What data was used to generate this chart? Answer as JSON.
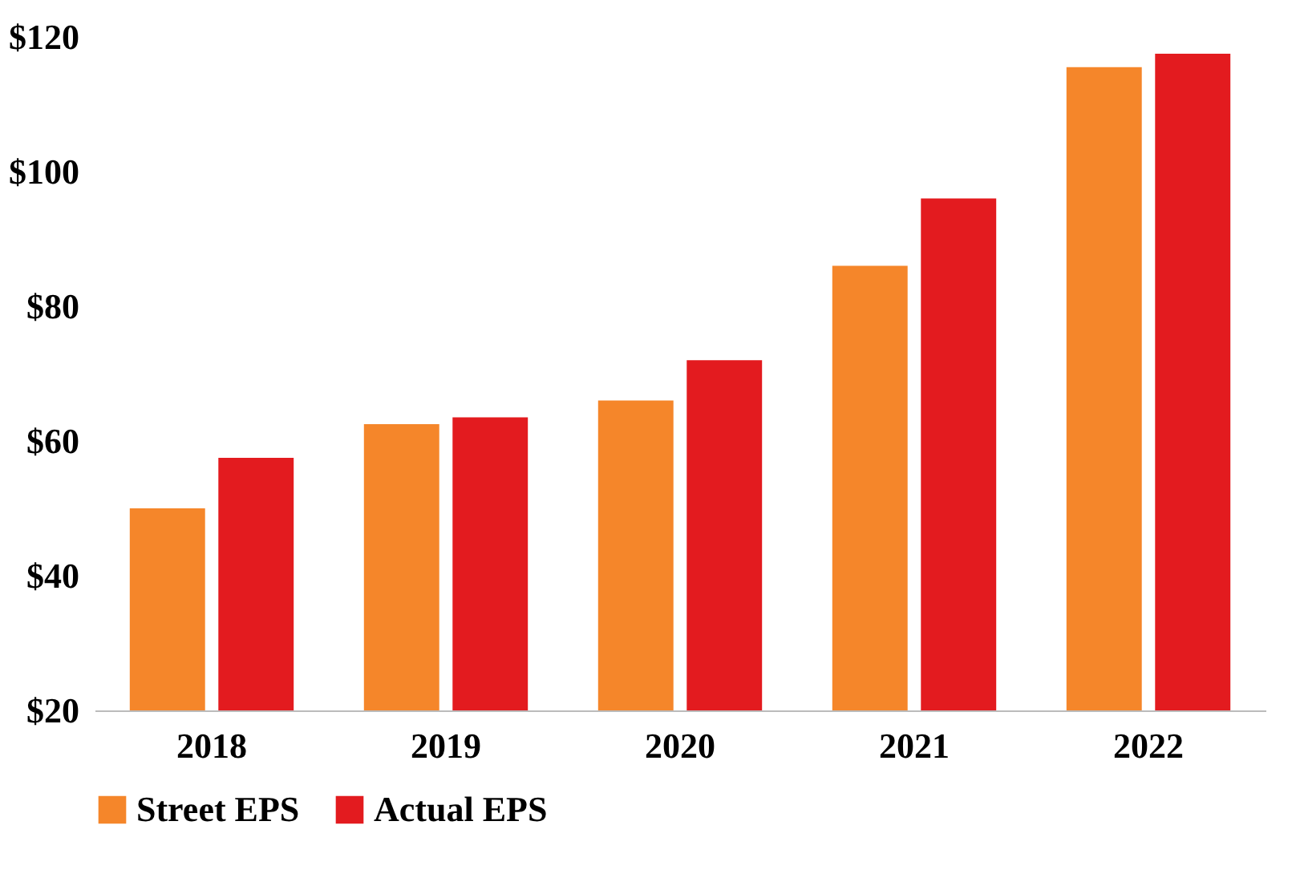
{
  "chart_data": {
    "type": "bar",
    "categories": [
      "2018",
      "2019",
      "2020",
      "2021",
      "2022"
    ],
    "series": [
      {
        "name": "Street EPS",
        "color": "#f5862a",
        "values": [
          50,
          62.5,
          66,
          86,
          115.5
        ]
      },
      {
        "name": "Actual EPS",
        "color": "#e31b1f",
        "values": [
          57.5,
          63.5,
          72,
          96,
          117.5
        ]
      }
    ],
    "ylim": [
      20,
      120
    ],
    "yticks": [
      {
        "value": 20,
        "label": "$20"
      },
      {
        "value": 40,
        "label": "$40"
      },
      {
        "value": 60,
        "label": "$60"
      },
      {
        "value": 80,
        "label": "$80"
      },
      {
        "value": 100,
        "label": "$100"
      },
      {
        "value": 120,
        "label": "$120"
      }
    ],
    "grid": false,
    "legend": "bottom"
  }
}
